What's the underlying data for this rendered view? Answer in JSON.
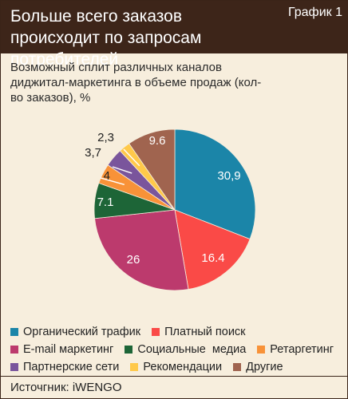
{
  "header": {
    "title": "Больше всего заказов происходит по запросам потребителей",
    "tag": "График 1"
  },
  "chart_data": {
    "type": "pie",
    "title": "Возможный сплит различных каналов диджитал-маркетинга в объеме продаж (кол-во заказов), %",
    "slices": [
      {
        "name": "Органический трафик",
        "label": "30,9",
        "value": 30.9,
        "color": "#1b85a8"
      },
      {
        "name": "Платный поиск",
        "label": "16.4",
        "value": 16.4,
        "color": "#fa4a47"
      },
      {
        "name": "E-mail маркетинг",
        "label": "26",
        "value": 26,
        "color": "#bc3a6d"
      },
      {
        "name": "Социальные  медиа",
        "label": "7.1",
        "value": 7.1,
        "color": "#1d6537"
      },
      {
        "name": "Ретаргетинг",
        "label": "4",
        "value": 4,
        "color": "#f89238"
      },
      {
        "name": "Партнерские сети",
        "label": "3,7",
        "value": 3.7,
        "color": "#7a559c"
      },
      {
        "name": "Рекомендации",
        "label": "2,3",
        "value": 2.3,
        "color": "#ffc94a"
      },
      {
        "name": "Другие",
        "label": "9.6",
        "value": 9.6,
        "color": "#a0644f"
      }
    ]
  },
  "legend_rows": [
    [
      0,
      1
    ],
    [
      2,
      3,
      4
    ],
    [
      5,
      6,
      7
    ]
  ],
  "footer": {
    "source": "Источгник: iWENGO"
  }
}
